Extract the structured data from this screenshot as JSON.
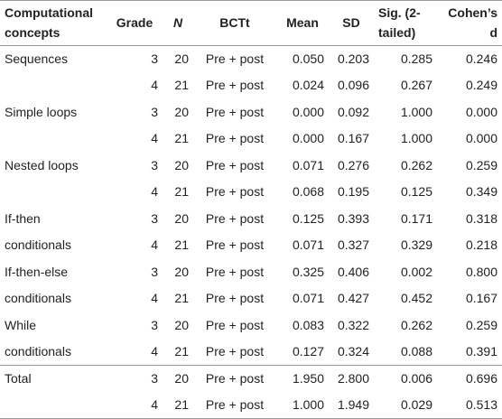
{
  "table": {
    "headers": {
      "concepts": "Computational concepts",
      "grade": "Grade",
      "n": "N",
      "bctt": "BCTt",
      "mean": "Mean",
      "sd": "SD",
      "sig": "Sig. (2-tailed)",
      "cohens_d": "Cohen’s d"
    },
    "rows": [
      {
        "concept": "Sequences",
        "grade": "3",
        "n": "20",
        "bctt": "Pre + post",
        "mean": "0.050",
        "sd": "0.203",
        "sig": "0.285",
        "d": "0.246"
      },
      {
        "concept": "",
        "grade": "4",
        "n": "21",
        "bctt": "Pre + post",
        "mean": "0.024",
        "sd": "0.096",
        "sig": "0.267",
        "d": "0.249"
      },
      {
        "concept": "Simple loops",
        "grade": "3",
        "n": "20",
        "bctt": "Pre + post",
        "mean": "0.000",
        "sd": "0.092",
        "sig": "1.000",
        "d": "0.000"
      },
      {
        "concept": "",
        "grade": "4",
        "n": "21",
        "bctt": "Pre + post",
        "mean": "0.000",
        "sd": "0.167",
        "sig": "1.000",
        "d": "0.000"
      },
      {
        "concept": "Nested loops",
        "grade": "3",
        "n": "20",
        "bctt": "Pre + post",
        "mean": "0.071",
        "sd": "0.276",
        "sig": "0.262",
        "d": "0.259"
      },
      {
        "concept": "",
        "grade": "4",
        "n": "21",
        "bctt": "Pre + post",
        "mean": "0.068",
        "sd": "0.195",
        "sig": "0.125",
        "d": "0.349"
      },
      {
        "concept": "If-then",
        "grade": "3",
        "n": "20",
        "bctt": "Pre + post",
        "mean": "0.125",
        "sd": "0.393",
        "sig": "0.171",
        "d": "0.318"
      },
      {
        "concept": "conditionals",
        "grade": "4",
        "n": "21",
        "bctt": "Pre + post",
        "mean": "0.071",
        "sd": "0.327",
        "sig": "0.329",
        "d": "0.218"
      },
      {
        "concept": "If-then-else",
        "grade": "3",
        "n": "20",
        "bctt": "Pre + post",
        "mean": "0.325",
        "sd": "0.406",
        "sig": "0.002",
        "d": "0.800"
      },
      {
        "concept": "conditionals",
        "grade": "4",
        "n": "21",
        "bctt": "Pre + post",
        "mean": "0.071",
        "sd": "0.427",
        "sig": "0.452",
        "d": "0.167"
      },
      {
        "concept": "While",
        "grade": "3",
        "n": "20",
        "bctt": "Pre + post",
        "mean": "0.083",
        "sd": "0.322",
        "sig": "0.262",
        "d": "0.259"
      },
      {
        "concept": "conditionals",
        "grade": "4",
        "n": "21",
        "bctt": "Pre + post",
        "mean": "0.127",
        "sd": "0.324",
        "sig": "0.088",
        "d": "0.391"
      },
      {
        "concept": "Total",
        "grade": "3",
        "n": "20",
        "bctt": "Pre + post",
        "mean": "1.950",
        "sd": "2.800",
        "sig": "0.006",
        "d": "0.696"
      },
      {
        "concept": "",
        "grade": "4",
        "n": "21",
        "bctt": "Pre + post",
        "mean": "1.000",
        "sd": "1.949",
        "sig": "0.029",
        "d": "0.513"
      }
    ]
  }
}
